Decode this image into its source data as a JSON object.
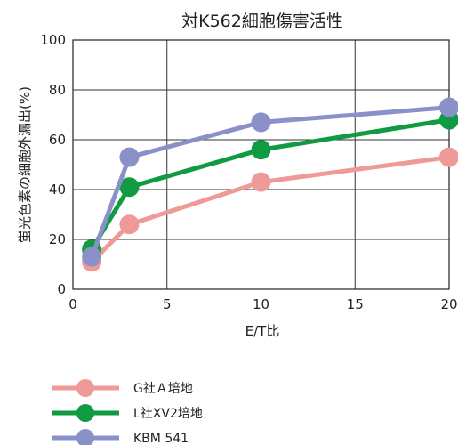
{
  "chart_data": {
    "type": "line",
    "title": "対K562細胞傷害活性",
    "xlabel": "E/T比",
    "ylabel": "蛍光色素の細胞外漏出(%)",
    "xlim": [
      0,
      20
    ],
    "ylim": [
      0,
      100
    ],
    "xticks": [
      0,
      5,
      10,
      15,
      20
    ],
    "yticks": [
      0,
      20,
      40,
      60,
      80,
      100
    ],
    "x": [
      1,
      3,
      10,
      20
    ],
    "grid": true,
    "legend_position": "bottom-left",
    "series": [
      {
        "name": "G社Ａ培地",
        "color": "#f09a98",
        "values": [
          11,
          26,
          43,
          53
        ]
      },
      {
        "name": "L社XV2培地",
        "color": "#109a42",
        "values": [
          16,
          41,
          56,
          68
        ]
      },
      {
        "name": "KBM 541",
        "color": "#8a90c8",
        "values": [
          13,
          53,
          67,
          73
        ]
      }
    ]
  }
}
